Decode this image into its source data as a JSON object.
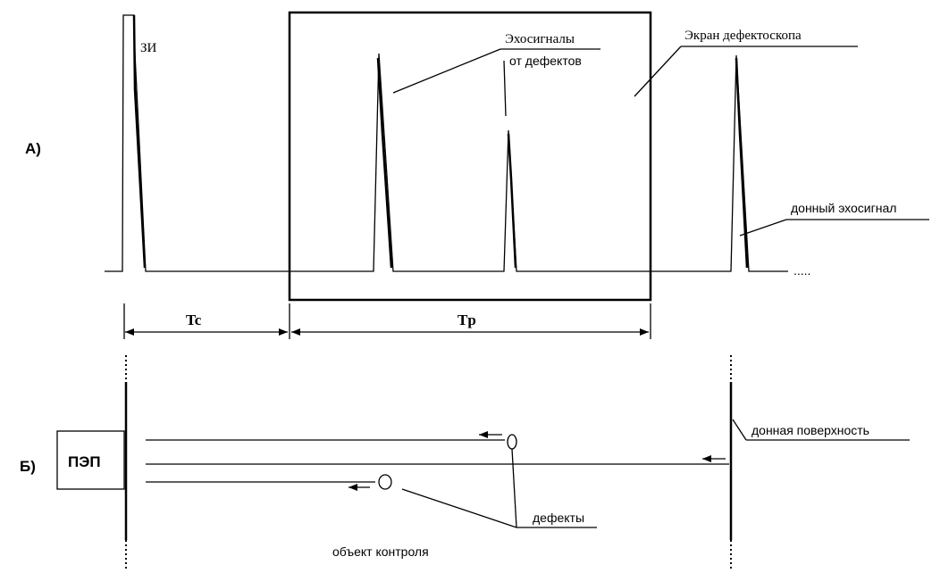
{
  "labels": {
    "section_a": "А)",
    "section_b": "Б)",
    "initial_pulse": "ЗИ",
    "echo_defects_line1": "Эхосигналы",
    "echo_defects_line2": "от дефектов",
    "screen": "Экран дефектоскопа",
    "bottom_echo": "донный эхосигнал",
    "tail_dots": ".....",
    "tc": "Tc",
    "tp": "Tp",
    "transducer": "ПЭП",
    "bottom_surface": "донная поверхность",
    "defects": "дефекты",
    "test_object": "объект контроля"
  }
}
